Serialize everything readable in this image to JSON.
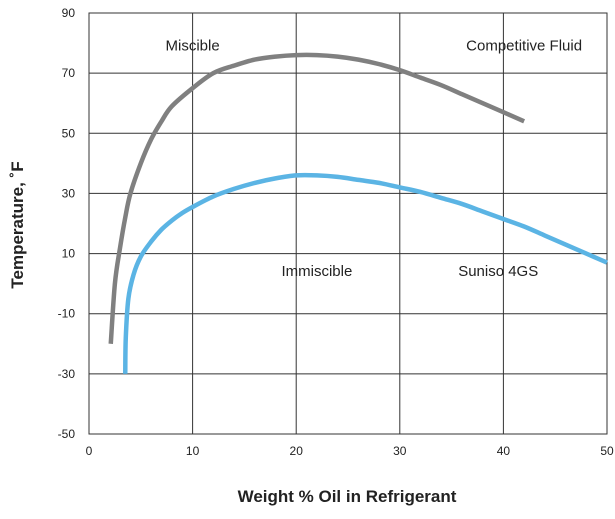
{
  "chart_data": {
    "type": "line",
    "title": "",
    "xlabel": "Weight % Oil in Refrigerant",
    "ylabel": "Temperature, ˚F",
    "xlim": [
      0,
      50
    ],
    "ylim": [
      -50,
      90
    ],
    "x_ticks": [
      0,
      10,
      20,
      30,
      40,
      50
    ],
    "y_ticks": [
      -50,
      -30,
      -10,
      10,
      30,
      50,
      70,
      90
    ],
    "grid": true,
    "series": [
      {
        "name": "Competitive Fluid",
        "color": "#808080",
        "points": [
          [
            2.1,
            -20
          ],
          [
            2.5,
            0
          ],
          [
            3.0,
            12
          ],
          [
            3.5,
            22
          ],
          [
            4,
            30
          ],
          [
            5,
            40
          ],
          [
            6,
            48
          ],
          [
            7,
            54
          ],
          [
            8,
            59
          ],
          [
            10,
            65
          ],
          [
            12,
            70
          ],
          [
            14,
            72.5
          ],
          [
            16,
            74.5
          ],
          [
            18,
            75.5
          ],
          [
            20,
            76
          ],
          [
            22,
            76
          ],
          [
            24,
            75.5
          ],
          [
            26,
            74.5
          ],
          [
            28,
            73
          ],
          [
            30,
            71
          ],
          [
            32,
            68.5
          ],
          [
            34,
            66
          ],
          [
            36,
            63
          ],
          [
            38,
            60
          ],
          [
            40,
            57
          ],
          [
            42,
            54
          ]
        ]
      },
      {
        "name": "Suniso 4GS",
        "color": "#5BB4E4",
        "points": [
          [
            3.5,
            -30
          ],
          [
            3.55,
            -18
          ],
          [
            3.8,
            -5
          ],
          [
            4.3,
            3
          ],
          [
            5,
            9
          ],
          [
            6,
            14
          ],
          [
            7,
            18
          ],
          [
            8,
            21
          ],
          [
            9,
            23.5
          ],
          [
            10,
            25.5
          ],
          [
            12,
            29
          ],
          [
            14,
            31.5
          ],
          [
            16,
            33.5
          ],
          [
            18,
            35
          ],
          [
            20,
            36
          ],
          [
            22,
            36
          ],
          [
            24,
            35.5
          ],
          [
            26,
            34.5
          ],
          [
            28,
            33.5
          ],
          [
            30,
            32
          ],
          [
            32,
            30.5
          ],
          [
            34,
            28.5
          ],
          [
            36,
            26.5
          ],
          [
            38,
            24
          ],
          [
            40,
            21.5
          ],
          [
            42,
            19
          ],
          [
            44,
            16
          ],
          [
            46,
            13
          ],
          [
            48,
            10
          ],
          [
            50,
            7
          ]
        ]
      }
    ],
    "annotations": [
      {
        "text": "Miscible",
        "x": 10,
        "y": 77.5
      },
      {
        "text": "Competitive Fluid",
        "x": 42,
        "y": 77.5
      },
      {
        "text": "Immiscible",
        "x": 22,
        "y": 2.5
      },
      {
        "text": "Suniso 4GS",
        "x": 39.5,
        "y": 2.5
      }
    ]
  }
}
